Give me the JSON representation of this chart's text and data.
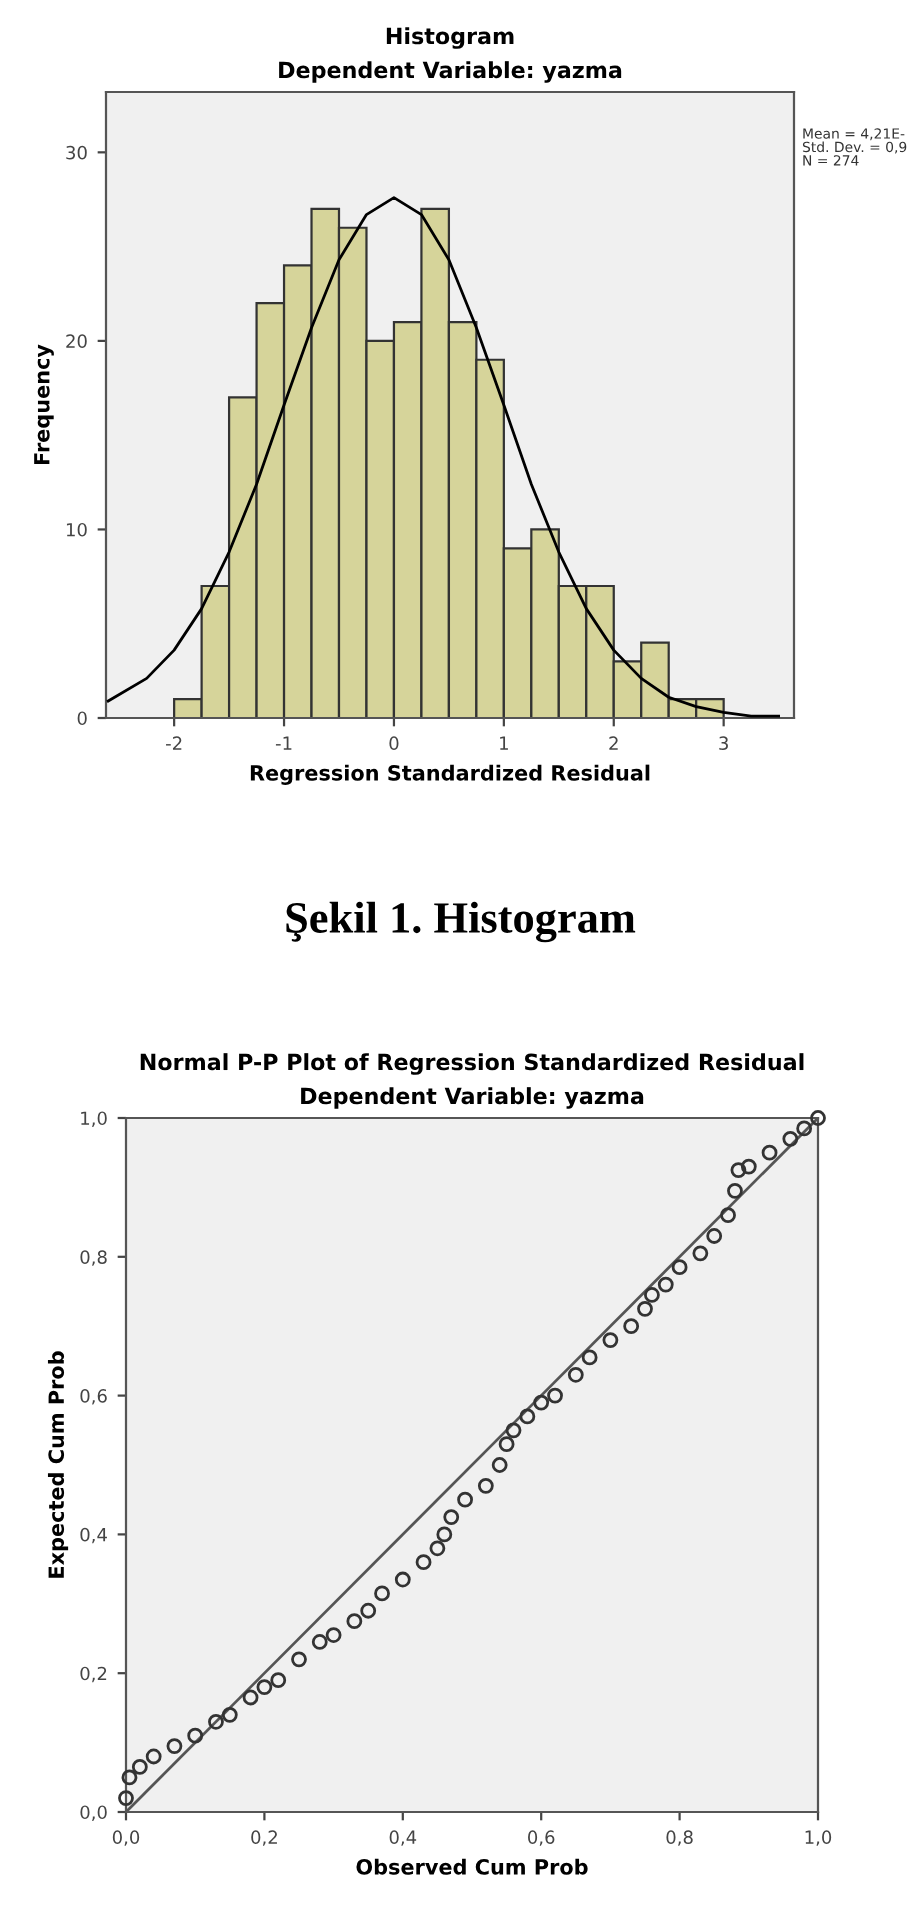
{
  "chart_data": [
    {
      "type": "histogram",
      "title": "Histogram",
      "subtitle": "Dependent Variable: yazma",
      "xlabel": "Regression Standardized Residual",
      "ylabel": "Frequency",
      "bins": [
        -2,
        -1.75,
        -1.5,
        -1.25,
        -1,
        -0.75,
        -0.5,
        -0.25,
        0,
        0.25,
        0.5,
        0.75,
        1,
        1.25,
        1.5,
        1.75,
        2,
        2.25,
        2.5,
        2.75,
        3
      ],
      "values": [
        1,
        7,
        17,
        22,
        24,
        27,
        26,
        20,
        21,
        27,
        21,
        19,
        9,
        10,
        7,
        7,
        3,
        4,
        1,
        1
      ],
      "color": "#d6d49a",
      "series": [
        {
          "type": "line",
          "color": "#000000",
          "x": [
            -2.6,
            -2.25,
            -2,
            -1.75,
            -1.5,
            -1.25,
            -1,
            -0.75,
            -0.5,
            -0.25,
            0,
            0.25,
            0.5,
            0.75,
            1,
            1.25,
            1.5,
            1.75,
            2,
            2.25,
            2.5,
            2.75,
            3,
            3.25,
            3.5
          ],
          "values": [
            0.9,
            2.1,
            3.6,
            5.8,
            8.8,
            12.4,
            16.6,
            20.7,
            24.3,
            26.7,
            27.6,
            26.7,
            24.3,
            20.7,
            16.6,
            12.4,
            8.8,
            5.8,
            3.6,
            2.1,
            1.1,
            0.6,
            0.3,
            0.1,
            0.1
          ]
        }
      ],
      "xlim": [
        -2.62,
        3.64
      ],
      "ylim": [
        0,
        33.2
      ],
      "xticks": [
        -2,
        -1,
        0,
        1,
        2,
        3
      ],
      "yticks": [
        0,
        10,
        20,
        30
      ],
      "grid": false,
      "legend": false,
      "annotations": [
        "Mean = 4,21E-\nStd. Dev. = 0,9\nN = 274",
        "Şekil 1. Histogram"
      ]
    },
    {
      "type": "scatter",
      "title": "Normal P-P Plot of Regression Standardized Residual",
      "subtitle": "Dependent Variable: yazma",
      "xlabel": "Observed Cum Prob",
      "ylabel": "Expected Cum Prob",
      "series": [
        {
          "type": "scatter",
          "color": "#333333",
          "marker": "circle",
          "x": [
            0.0,
            0.005,
            0.02,
            0.04,
            0.07,
            0.1,
            0.13,
            0.15,
            0.18,
            0.2,
            0.22,
            0.25,
            0.28,
            0.3,
            0.33,
            0.35,
            0.37,
            0.4,
            0.43,
            0.45,
            0.46,
            0.47,
            0.49,
            0.52,
            0.54,
            0.55,
            0.56,
            0.58,
            0.6,
            0.62,
            0.65,
            0.67,
            0.7,
            0.73,
            0.75,
            0.76,
            0.78,
            0.8,
            0.83,
            0.85,
            0.87,
            0.88,
            0.885,
            0.9,
            0.93,
            0.96,
            0.98,
            1.0
          ],
          "values": [
            0.02,
            0.05,
            0.065,
            0.08,
            0.095,
            0.11,
            0.13,
            0.14,
            0.165,
            0.18,
            0.19,
            0.22,
            0.245,
            0.255,
            0.275,
            0.29,
            0.315,
            0.335,
            0.36,
            0.38,
            0.4,
            0.425,
            0.45,
            0.47,
            0.5,
            0.53,
            0.55,
            0.57,
            0.59,
            0.6,
            0.63,
            0.655,
            0.68,
            0.7,
            0.725,
            0.745,
            0.76,
            0.785,
            0.805,
            0.83,
            0.86,
            0.895,
            0.925,
            0.93,
            0.95,
            0.97,
            0.985,
            1.0
          ]
        },
        {
          "type": "line",
          "color": "#555555",
          "x": [
            0,
            1
          ],
          "values": [
            0,
            1
          ]
        }
      ],
      "xlim": [
        0,
        1
      ],
      "ylim": [
        0,
        1
      ],
      "xticks": [
        {
          "value": 0,
          "label": "0,0"
        },
        {
          "value": 0.2,
          "label": "0,2"
        },
        {
          "value": 0.4,
          "label": "0,4"
        },
        {
          "value": 0.6,
          "label": "0,6"
        },
        {
          "value": 0.8,
          "label": "0,8"
        },
        {
          "value": 1,
          "label": "1,0"
        }
      ],
      "yticks": [
        {
          "value": 0,
          "label": "0,0"
        },
        {
          "value": 0.2,
          "label": "0,2"
        },
        {
          "value": 0.4,
          "label": "0,4"
        },
        {
          "value": 0.6,
          "label": "0,6"
        },
        {
          "value": 0.8,
          "label": "0,8"
        },
        {
          "value": 1,
          "label": "1,0"
        }
      ],
      "grid": false,
      "legend": false
    }
  ]
}
